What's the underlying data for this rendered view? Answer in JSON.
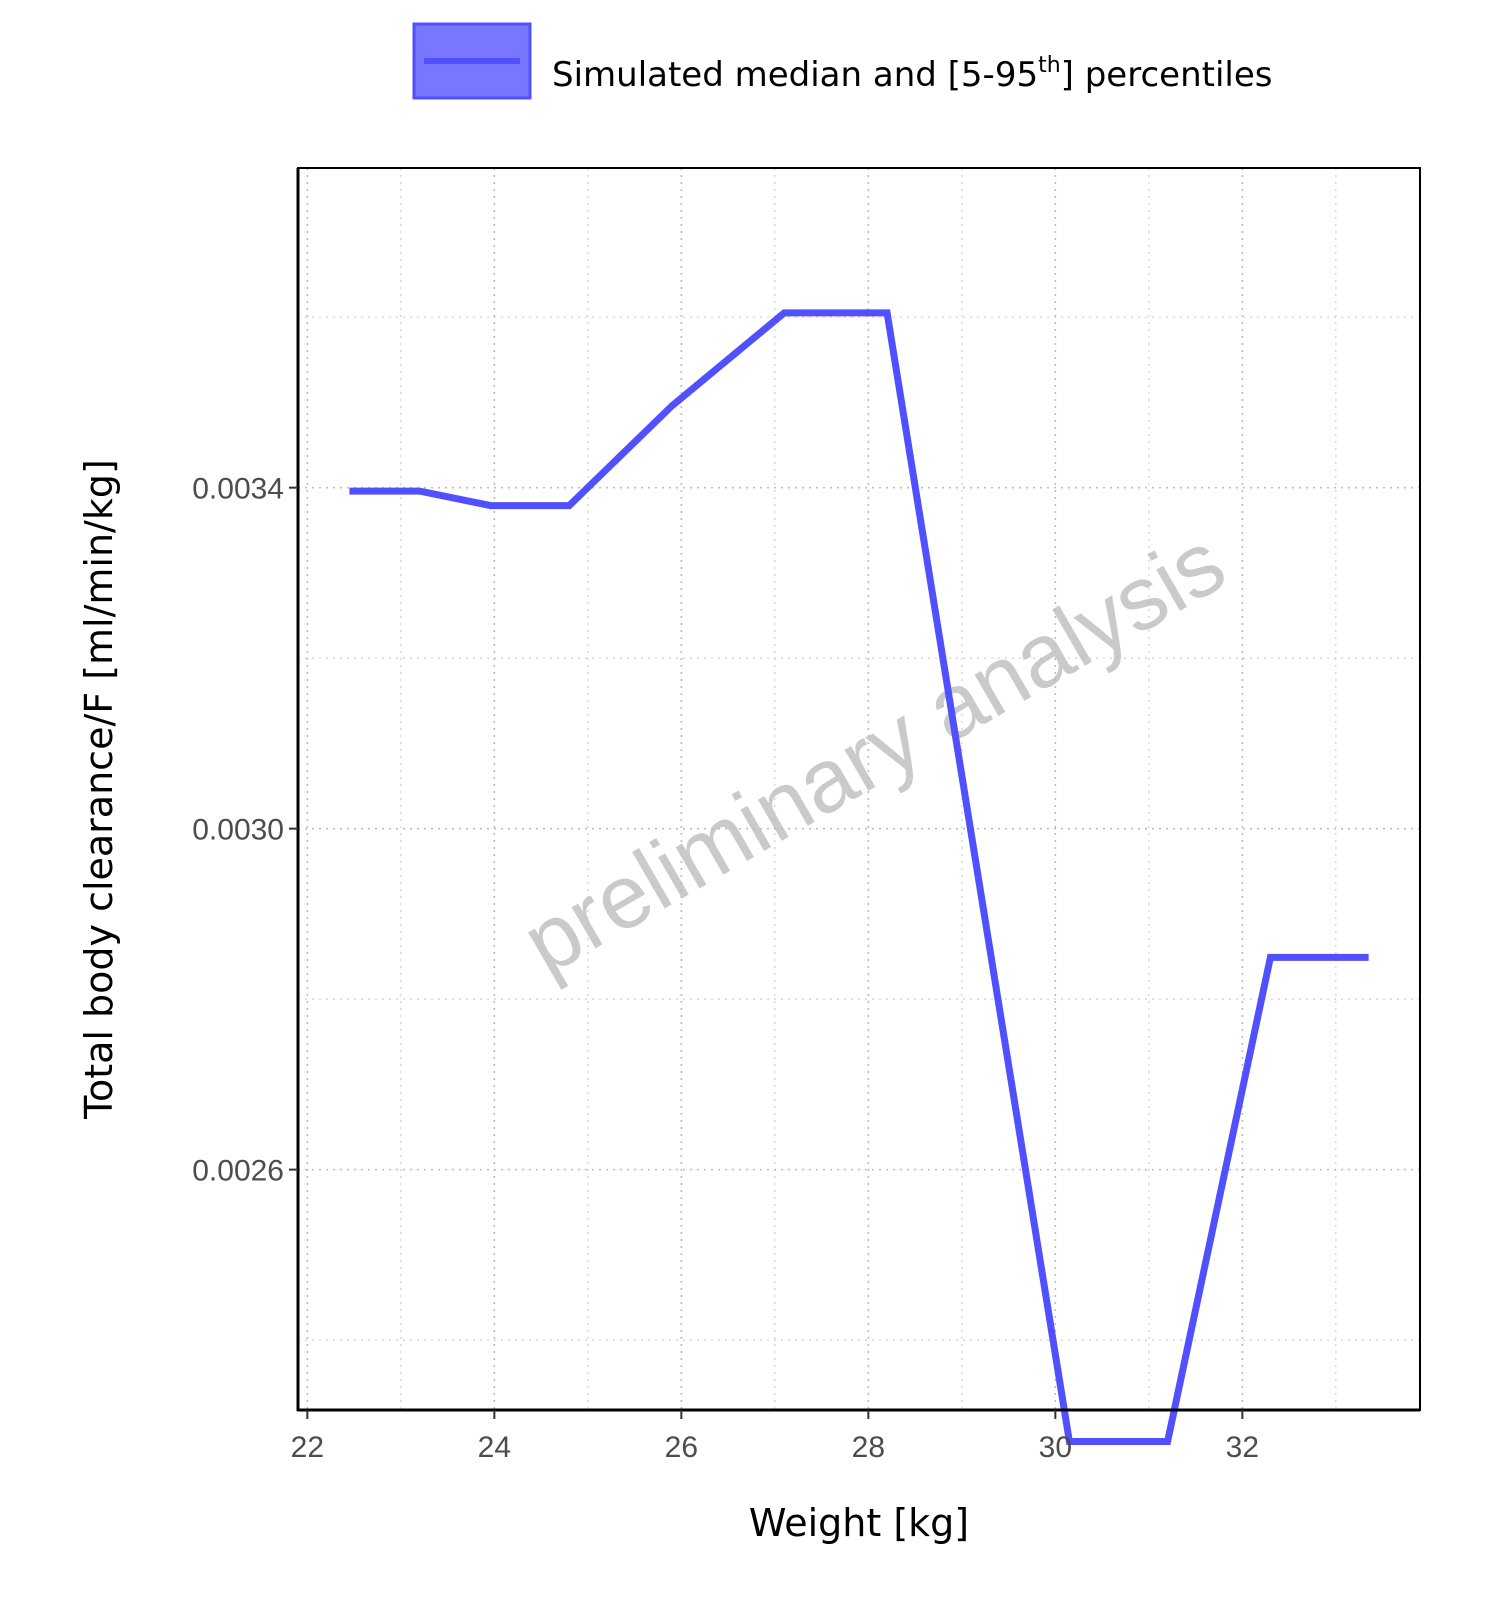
{
  "chart_data": {
    "type": "line",
    "title": "",
    "xlabel": "Weight [kg]",
    "ylabel": "Total body clearance/F [ml/min/kg]",
    "xlim": [
      21.9,
      33.9
    ],
    "ylim": [
      0.002318,
      0.003775
    ],
    "x_ticks": [
      22,
      24,
      26,
      28,
      30,
      32
    ],
    "x_tick_labels": [
      "22",
      "24",
      "26",
      "28",
      "30",
      "32"
    ],
    "y_ticks": [
      0.0026,
      0.003,
      0.0034
    ],
    "y_tick_labels": [
      "0.0026",
      "0.0030",
      "0.0034"
    ],
    "x_minor_ticks": [
      23,
      25,
      27,
      29,
      31,
      33
    ],
    "y_minor_ticks": [
      0.0024,
      0.0028,
      0.0032,
      0.0036
    ],
    "grid": true,
    "legend_position": "top",
    "series": [
      {
        "name": "Simulated median and [5-95th] percentiles",
        "color": "#5050ff",
        "x": [
          22.45,
          23.2,
          23.96,
          24.8,
          25.9,
          27.1,
          28.2,
          30.15,
          31.2,
          32.3,
          33.35
        ],
        "y": [
          0.003396,
          0.003396,
          0.003379,
          0.003379,
          0.003496,
          0.003605,
          0.003605,
          0.002281,
          0.002281,
          0.002849,
          0.002849
        ]
      }
    ],
    "legend": {
      "label_main": "Simulated median and [5-95",
      "label_sup": "th",
      "label_end": "] percentiles",
      "fill_color": "#7878ff",
      "border_color": "#5050ff"
    },
    "watermark": "preliminary analysis"
  }
}
